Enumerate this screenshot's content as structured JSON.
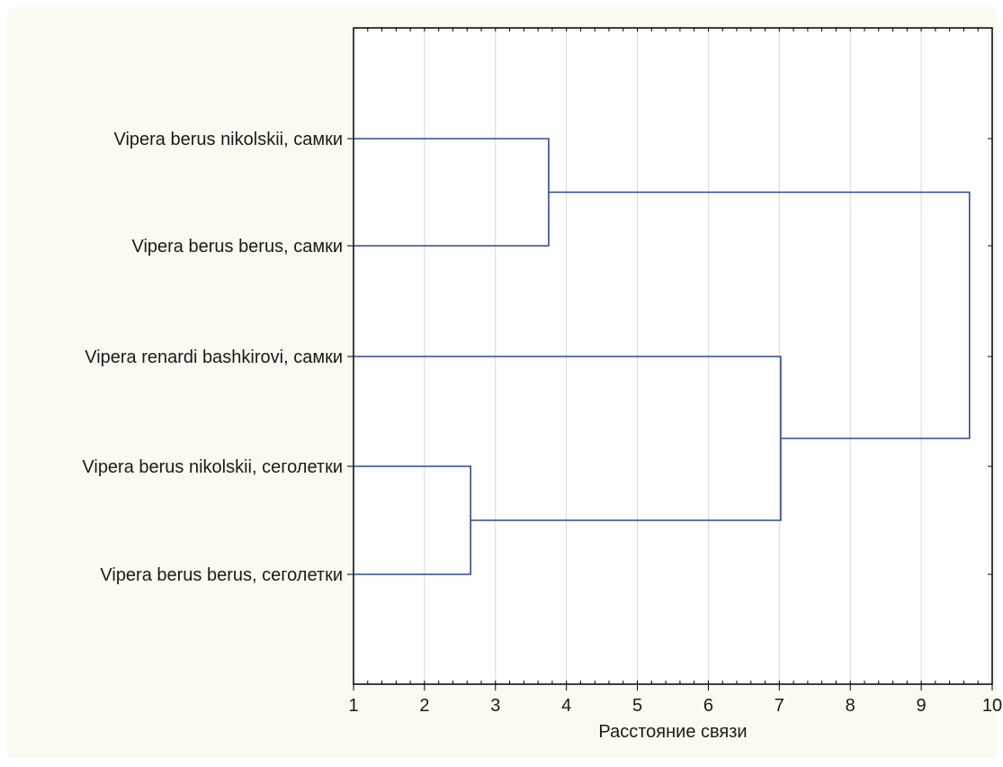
{
  "chart_data": {
    "type": "dendrogram",
    "title": "",
    "xlabel": "Расстояние связи",
    "ylabel": "",
    "xlim": [
      1,
      10
    ],
    "x_ticks": [
      1,
      2,
      3,
      4,
      5,
      6,
      7,
      8,
      9,
      10
    ],
    "grid": "vertical",
    "leaves": [
      "Vipera berus nikolskii, самки",
      "Vipera berus berus, самки",
      "Vipera renardi bashkirovi, самки",
      "Vipera berus nikolskii, сеголетки",
      "Vipera berus berus, сеголетки"
    ],
    "merges": [
      {
        "left": "Vipera berus nikolskii, сеголетки",
        "right": "Vipera berus berus, сеголетки",
        "distance": 2.65
      },
      {
        "left": "Vipera berus nikolskii, самки",
        "right": "Vipera berus berus, самки",
        "distance": 3.75
      },
      {
        "left": "Vipera renardi bashkirovi, самки",
        "right": "merge-1",
        "distance": 7.02
      },
      {
        "left": "merge-2",
        "right": "merge-3",
        "distance": 9.68
      }
    ]
  },
  "colors": {
    "figure_background": "#fcf9f1",
    "plot_background": "#ffffff",
    "branch": "#2e4a8c",
    "grid": "#d7d7d7",
    "axis": "#000000",
    "text": "#1a1a1a"
  }
}
